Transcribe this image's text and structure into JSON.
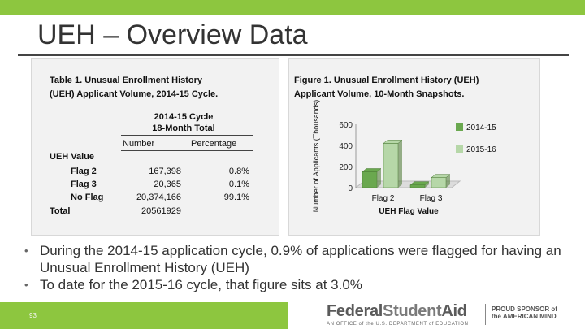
{
  "slide": {
    "title": "UEH – Overview Data",
    "page_number": "93"
  },
  "table": {
    "caption_line1": "Table 1. Unusual Enrollment History",
    "caption_line2": "(UEH) Applicant Volume, 2014-15 Cycle.",
    "cycle_line1": "2014-15 Cycle",
    "cycle_line2": "18-Month Total",
    "col_number": "Number",
    "col_percentage": "Percentage",
    "group_label": "UEH Value",
    "rows": [
      {
        "label": "Flag 2",
        "number": "167,398",
        "percentage": "0.8%"
      },
      {
        "label": "Flag 3",
        "number": "20,365",
        "percentage": "0.1%"
      },
      {
        "label": "No Flag",
        "number": "20,374,166",
        "percentage": "99.1%"
      },
      {
        "label": "Total",
        "number": "20561929",
        "percentage": ""
      }
    ]
  },
  "figure": {
    "caption_line1": "Figure 1. Unusual Enrollment History (UEH)",
    "caption_line2": "Applicant Volume, 10-Month Snapshots."
  },
  "chart_data": {
    "type": "bar",
    "title": "",
    "categories": [
      "Flag 2",
      "Flag 3"
    ],
    "series": [
      {
        "name": "2014-15",
        "values": [
          150,
          25
        ],
        "color": "#6aa84f"
      },
      {
        "name": "2015-16",
        "values": [
          420,
          95
        ],
        "color": "#b6d7a8"
      }
    ],
    "xlabel": "UEH Flag Value",
    "ylabel": "Number of Applicants (Thousands)",
    "yticks": [
      0,
      200,
      400,
      600
    ],
    "ylim": [
      0,
      600
    ],
    "legend_position": "right",
    "grid": false
  },
  "bullets": [
    "During the 2014-15 application cycle, 0.9% of applications were flagged for having an Unusual Enrollment History (UEH)",
    "To date for the 2015-16 cycle, that figure sits at 3.0%"
  ],
  "footer": {
    "logo_federal": "Federal",
    "logo_student": "Student",
    "logo_aid": "Aid",
    "logo_sub": "AN OFFICE of the U.S. DEPARTMENT of EDUCATION",
    "sponsor_line1": "PROUD SPONSOR of",
    "sponsor_line2": "the AMERICAN MIND"
  },
  "colors": {
    "accent_green": "#8dc63f",
    "bar_dark": "#6aa84f",
    "bar_light": "#b6d7a8"
  }
}
